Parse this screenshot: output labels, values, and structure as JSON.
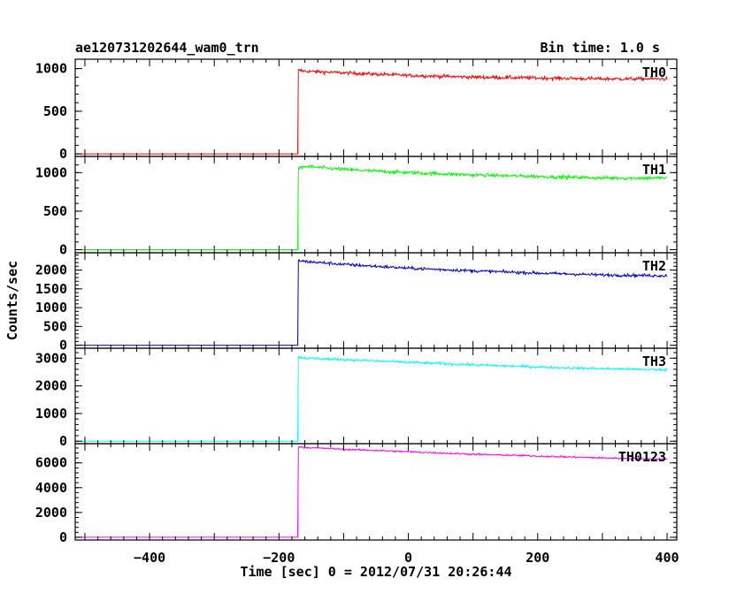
{
  "chart_data": {
    "type": "line",
    "title": "ae120731202644_wam0_trn",
    "annotation": "Bin time: 1.0 s",
    "xlabel": "Time [sec] 0 = 2012/07/31 20:26:44",
    "ylabel": "Counts/sec",
    "xlim": [
      -515,
      415
    ],
    "x_ticks": [
      "−400",
      "−200",
      "0",
      "200",
      "400"
    ],
    "x_tick_values": [
      -400,
      -200,
      0,
      200,
      400
    ],
    "trigger_time": -170,
    "panels": [
      {
        "name": "TH0",
        "color": "#ff0000",
        "ylim": [
          -30,
          1110
        ],
        "y_ticks": [
          "0",
          "500",
          "1000"
        ],
        "y_tick_values": [
          0,
          500,
          1000
        ],
        "pre_level": 0,
        "x": [
          -515,
          -171,
          -170,
          -160,
          -100,
          0,
          100,
          200,
          300,
          400
        ],
        "y": [
          0,
          0,
          980,
          970,
          950,
          920,
          900,
          890,
          880,
          880
        ],
        "noise": 35
      },
      {
        "name": "TH1",
        "color": "#00ff00",
        "ylim": [
          -40,
          1210
        ],
        "y_ticks": [
          "0",
          "500",
          "1000"
        ],
        "y_tick_values": [
          0,
          500,
          1000
        ],
        "pre_level": 0,
        "x": [
          -515,
          -171,
          -170,
          -160,
          -100,
          0,
          100,
          200,
          300,
          400
        ],
        "y": [
          0,
          0,
          1050,
          1080,
          1040,
          1000,
          970,
          950,
          930,
          930
        ],
        "noise": 40
      },
      {
        "name": "TH2",
        "color": "#0000cc",
        "ylim": [
          -80,
          2460
        ],
        "y_ticks": [
          "0",
          "500",
          "1000",
          "1500",
          "2000"
        ],
        "y_tick_values": [
          0,
          500,
          1000,
          1500,
          2000
        ],
        "pre_level": 0,
        "x": [
          -515,
          -171,
          -170,
          -160,
          -100,
          0,
          100,
          200,
          300,
          400
        ],
        "y": [
          0,
          0,
          2250,
          2230,
          2150,
          2050,
          1980,
          1920,
          1870,
          1850
        ],
        "noise": 70
      },
      {
        "name": "TH3",
        "color": "#00ffff",
        "ylim": [
          -90,
          3360
        ],
        "y_ticks": [
          "0",
          "1000",
          "2000",
          "3000"
        ],
        "y_tick_values": [
          0,
          1000,
          2000,
          3000
        ],
        "pre_level": 0,
        "x": [
          -515,
          -171,
          -170,
          -160,
          -100,
          0,
          100,
          200,
          300,
          400
        ],
        "y": [
          0,
          0,
          3050,
          3000,
          2950,
          2850,
          2760,
          2680,
          2620,
          2580
        ],
        "noise": 80
      },
      {
        "name": "TH0123",
        "color": "#ff00ff",
        "ylim": [
          -220,
          7550
        ],
        "y_ticks": [
          "0",
          "2000",
          "4000",
          "6000"
        ],
        "y_tick_values": [
          0,
          2000,
          4000,
          6000
        ],
        "pre_level": 0,
        "x": [
          -515,
          -171,
          -170,
          -160,
          -100,
          0,
          100,
          200,
          300,
          400
        ],
        "y": [
          0,
          0,
          7300,
          7250,
          7100,
          6900,
          6700,
          6550,
          6400,
          6300
        ],
        "noise": 120
      }
    ]
  }
}
